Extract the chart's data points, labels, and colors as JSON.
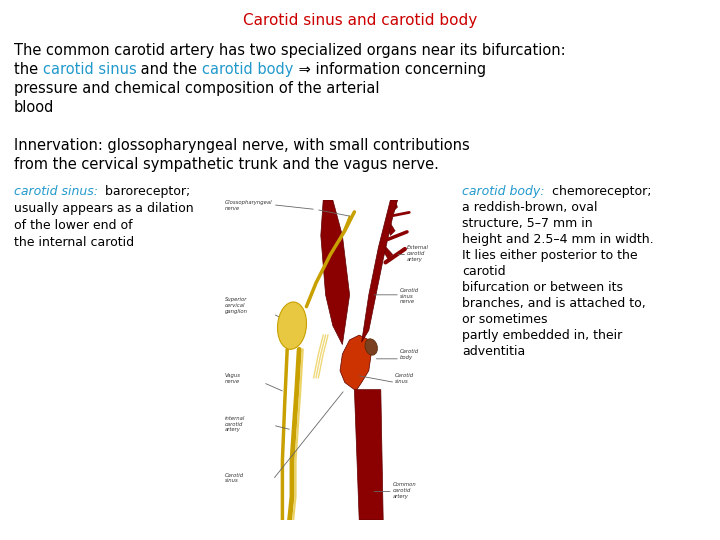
{
  "title": "Carotid sinus and carotid body",
  "title_color": "#cc0000",
  "title_fontsize": 11,
  "bg_color": "#ffffff",
  "body_text_color": "#000000",
  "body_fontsize": 10.5,
  "small_fontsize": 9.0,
  "paragraph1_line1": "The common carotid artery has two specialized organs near its bifurcation:",
  "paragraph1_line2_plain1": "the ",
  "paragraph1_line2_colored1": "carotid sinus",
  "paragraph1_line2_plain2": " and the ",
  "paragraph1_line2_colored2": "carotid body",
  "paragraph1_line2_plain3": " ⇒ information concerning",
  "paragraph1_line3": "pressure and chemical composition of the arterial",
  "paragraph1_line4": "blood",
  "colored_text_color": "#2299cc",
  "paragraph2_line1": "Innervation: glossopharyngeal nerve, with small contributions",
  "paragraph2_line2": "from the cervical sympathetic trunk and the vagus nerve.",
  "left_label_title": "carotid sinus:",
  "left_label_title_color": "#2299cc",
  "left_label_lines": [
    "baroreceptor;",
    "usually appears as a dilation",
    "of the lower end of",
    "the internal carotid"
  ],
  "right_label_title": "carotid body:",
  "right_label_title_color": "#2299cc",
  "right_label_lines": [
    "chemoreceptor;",
    "a reddish-brown, oval",
    "structure, 5–7 mm in",
    "height and 2.5–4 mm in width.",
    "It lies either posterior to the",
    "carotid",
    "bifurcation or between its",
    "branches, and is attached to,",
    "or sometimes",
    "partly embedded in, their",
    "adventitia"
  ]
}
